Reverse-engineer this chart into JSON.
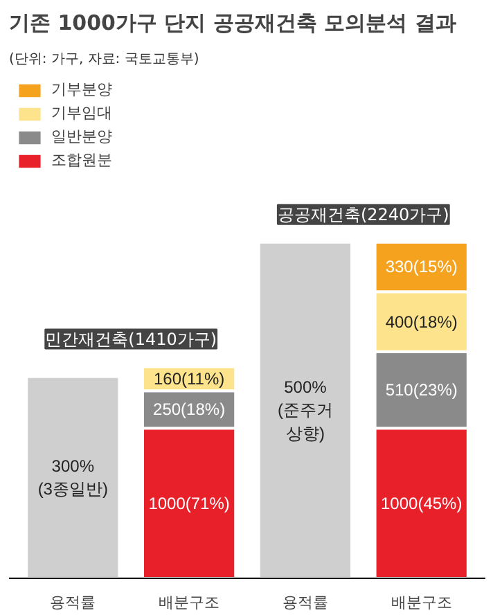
{
  "chart_data": {
    "type": "bar",
    "title": "기존 1000가구 단지 공공재건축 모의분석 결과",
    "subtitle": "(단위: 가구, 자료: 국토교통부)",
    "categories": [
      "용적률",
      "배분구조",
      "용적률",
      "배분구조"
    ],
    "stacked": true,
    "series": [
      {
        "name": "조합원분",
        "color": "#e8202a",
        "values": [
          null,
          1000,
          null,
          1000
        ],
        "value_labels": [
          null,
          "1000(71%)",
          null,
          "1000(45%)"
        ]
      },
      {
        "name": "일반분양",
        "color": "#8a8a8a",
        "values": [
          null,
          250,
          null,
          510
        ],
        "value_labels": [
          null,
          "250(18%)",
          null,
          "510(23%)"
        ]
      },
      {
        "name": "기부임대",
        "color": "#fde48c",
        "values": [
          null,
          160,
          null,
          400
        ],
        "value_labels": [
          null,
          "160(11%)",
          null,
          "400(18%)"
        ]
      },
      {
        "name": "기부분양",
        "color": "#f5a31e",
        "values": [
          null,
          null,
          null,
          330
        ],
        "value_labels": [
          null,
          null,
          null,
          "330(15%)"
        ]
      },
      {
        "color": "#cfcfcf",
        "axis": "y2",
        "values": [
          300,
          null,
          500,
          null
        ],
        "value_labels": [
          "300%\n(3종일반)",
          null,
          "500%\n(준주거\n상향)",
          null
        ]
      }
    ],
    "annotations": [
      "민간재건축(1410가구)",
      "공공재건축(2240가구)"
    ],
    "legend": "top left",
    "tick_labels": "x",
    "grid": false
  }
}
